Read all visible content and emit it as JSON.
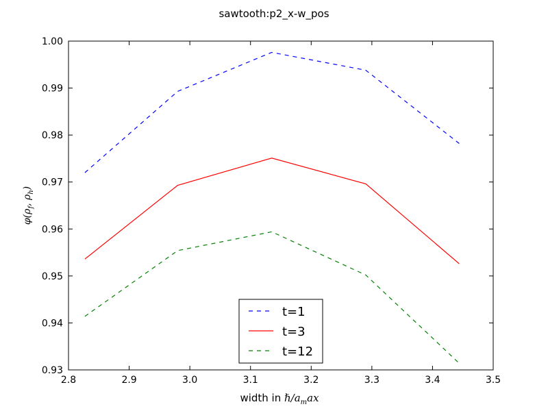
{
  "chart_data": {
    "type": "line",
    "title": "sawtooth:p2_x-w_pos",
    "xlabel": "width in ℏ/a_max",
    "ylabel": "φ(ρ_f, ρ_h)",
    "xlim": [
      2.8,
      3.5
    ],
    "ylim": [
      0.93,
      1.0
    ],
    "xticks": [
      "2.8",
      "2.9",
      "3.0",
      "3.1",
      "3.2",
      "3.3",
      "3.4",
      "3.5"
    ],
    "yticks": [
      "0.93",
      "0.94",
      "0.95",
      "0.96",
      "0.97",
      "0.98",
      "0.99",
      "1.00"
    ],
    "grid": false,
    "legend_position": "lower center",
    "series": [
      {
        "name": "t=1",
        "color": "#0000ff",
        "style": "dashed",
        "x": [
          2.827,
          2.98,
          3.135,
          3.29,
          3.444
        ],
        "y": [
          0.972,
          0.9893,
          0.9976,
          0.9938,
          0.9782
        ]
      },
      {
        "name": "t=3",
        "color": "#ff0000",
        "style": "solid",
        "x": [
          2.827,
          2.98,
          3.135,
          3.29,
          3.444
        ],
        "y": [
          0.9536,
          0.9693,
          0.9751,
          0.9696,
          0.9526
        ]
      },
      {
        "name": "t=12",
        "color": "#008000",
        "style": "dashed",
        "x": [
          2.827,
          2.98,
          3.135,
          3.29,
          3.444
        ],
        "y": [
          0.9414,
          0.9554,
          0.9594,
          0.9502,
          0.9314
        ]
      }
    ]
  }
}
